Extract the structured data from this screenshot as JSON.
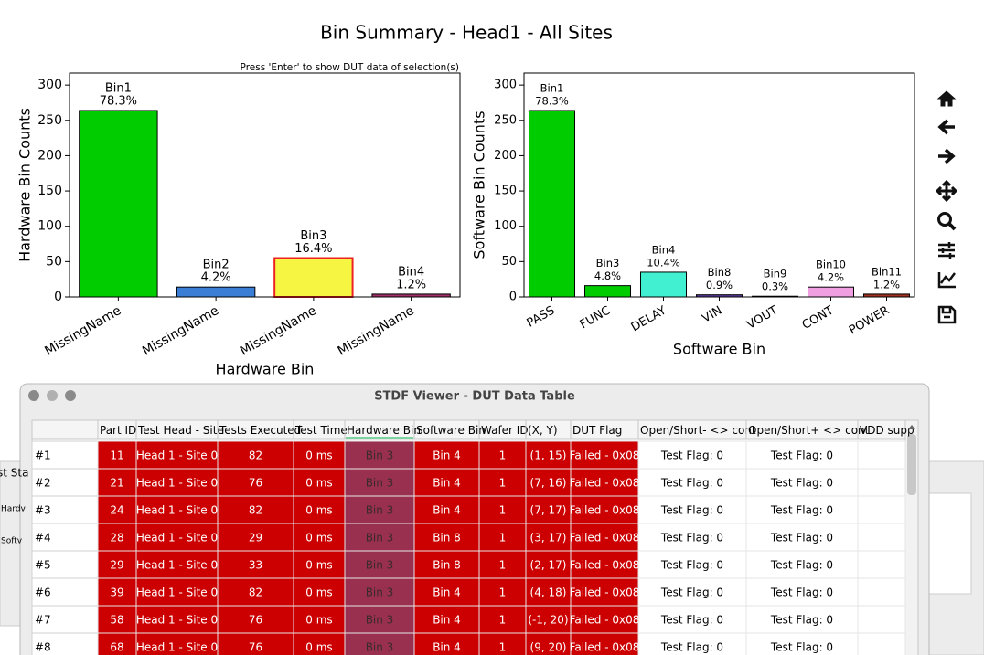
{
  "figure_title": "Bin Summary - Head1 - All Sites",
  "hint": "Press 'Enter' to show DUT data of selection(s)",
  "chart_data": [
    {
      "type": "bar",
      "ylabel": "Hardware Bin Counts",
      "xlabel": "Hardware Bin",
      "categories": [
        "MissingName",
        "MissingName",
        "MissingName",
        "MissingName"
      ],
      "values": [
        264,
        14,
        55,
        4
      ],
      "colors": [
        "#00cc00",
        "#3a7fd5",
        "#f5f542",
        "#a0306a"
      ],
      "edgecolors": [
        "#000000",
        "#000000",
        "#ee2222",
        "#000000"
      ],
      "bin_labels": [
        "Bin1",
        "Bin2",
        "Bin3",
        "Bin4"
      ],
      "percent_labels": [
        "78.3%",
        "4.2%",
        "16.4%",
        "1.2%"
      ],
      "ylim": [
        0,
        317
      ],
      "yticks": [
        0,
        50,
        100,
        150,
        200,
        250,
        300
      ]
    },
    {
      "type": "bar",
      "ylabel": "Software Bin Counts",
      "xlabel": "Software Bin",
      "categories": [
        "PASS",
        "FUNC",
        "DELAY",
        "VIN",
        "VOUT",
        "CONT",
        "POWER"
      ],
      "values": [
        264,
        16,
        35,
        3,
        1,
        14,
        4
      ],
      "colors": [
        "#00cc00",
        "#00cc00",
        "#40f0d0",
        "#5a3aa0",
        "#c0c0ff",
        "#f0a0e0",
        "#a03020"
      ],
      "edgecolors": [
        "#000000",
        "#000000",
        "#000000",
        "#000000",
        "#000000",
        "#000000",
        "#000000"
      ],
      "bin_labels": [
        "Bin1",
        "Bin3",
        "Bin4",
        "Bin8",
        "Bin9",
        "Bin10",
        "Bin11"
      ],
      "percent_labels": [
        "78.3%",
        "4.8%",
        "10.4%",
        "0.9%",
        "0.3%",
        "4.2%",
        "1.2%"
      ],
      "ylim": [
        0,
        317
      ],
      "yticks": [
        0,
        50,
        100,
        150,
        200,
        250,
        300
      ]
    }
  ],
  "background_labels": [
    "st Sta",
    "Hardv",
    "Softv"
  ],
  "dialog": {
    "title": "STDF Viewer - DUT Data Table",
    "columns": [
      "Part ID",
      "Test Head - Site",
      "Tests Executed",
      "Test Time",
      "Hardware Bin",
      "Software Bin",
      "Wafer ID",
      "(X, Y)",
      "DUT Flag",
      "Open/Short- <> cont",
      "Open/Short+ <> cont",
      "VDD supp"
    ],
    "row_headers": [
      "#1",
      "#2",
      "#3",
      "#4",
      "#5",
      "#6",
      "#7",
      "#8"
    ],
    "rows": [
      [
        "11",
        "Head 1 - Site 0",
        "82",
        "0 ms",
        "Bin 3",
        "Bin 4",
        "1",
        "(1, 15)",
        "Failed - 0x08",
        "Test Flag: 0",
        "Test Flag: 0"
      ],
      [
        "21",
        "Head 1 - Site 0",
        "76",
        "0 ms",
        "Bin 3",
        "Bin 4",
        "1",
        "(7, 16)",
        "Failed - 0x08",
        "Test Flag: 0",
        "Test Flag: 0"
      ],
      [
        "24",
        "Head 1 - Site 0",
        "82",
        "0 ms",
        "Bin 3",
        "Bin 4",
        "1",
        "(7, 17)",
        "Failed - 0x08",
        "Test Flag: 0",
        "Test Flag: 0"
      ],
      [
        "28",
        "Head 1 - Site 0",
        "29",
        "0 ms",
        "Bin 3",
        "Bin 8",
        "1",
        "(3, 17)",
        "Failed - 0x08",
        "Test Flag: 0",
        "Test Flag: 0"
      ],
      [
        "29",
        "Head 1 - Site 0",
        "33",
        "0 ms",
        "Bin 3",
        "Bin 8",
        "1",
        "(2, 17)",
        "Failed - 0x08",
        "Test Flag: 0",
        "Test Flag: 0"
      ],
      [
        "39",
        "Head 1 - Site 0",
        "82",
        "0 ms",
        "Bin 3",
        "Bin 4",
        "1",
        "(4, 18)",
        "Failed - 0x08",
        "Test Flag: 0",
        "Test Flag: 0"
      ],
      [
        "58",
        "Head 1 - Site 0",
        "76",
        "0 ms",
        "Bin 3",
        "Bin 4",
        "1",
        "(-1, 20)",
        "Failed - 0x08",
        "Test Flag: 0",
        "Test Flag: 0"
      ],
      [
        "68",
        "Head 1 - Site 0",
        "76",
        "0 ms",
        "Bin 3",
        "Bin 4",
        "1",
        "(9, 20)",
        "Failed - 0x08",
        "Test Flag: 0",
        "Test Flag: 0"
      ]
    ]
  }
}
